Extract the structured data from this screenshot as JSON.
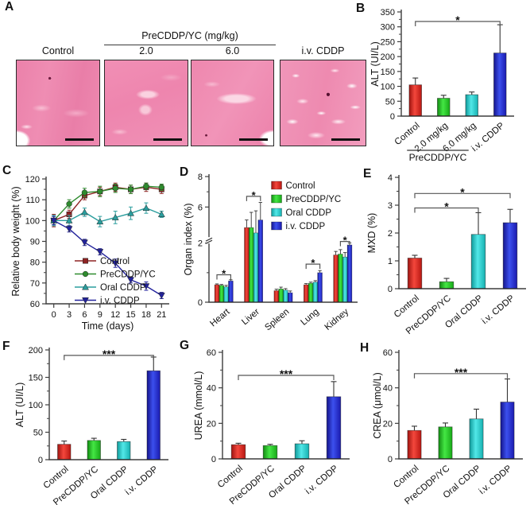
{
  "figure": {
    "panels": {
      "A": {
        "label": "A",
        "group_header": "PreCDDP/YC (mg/kg)",
        "columns": [
          "Control",
          "2.0",
          "6.0",
          "i.v. CDDP"
        ]
      },
      "B": {
        "label": "B"
      },
      "C": {
        "label": "C"
      },
      "D": {
        "label": "D"
      },
      "E": {
        "label": "E"
      },
      "F": {
        "label": "F"
      },
      "G": {
        "label": "G"
      },
      "H": {
        "label": "H"
      }
    }
  },
  "colors": {
    "axis": "#3d3d3d",
    "histology_pink": "#ee86ae",
    "significance_bracket": "#565656",
    "gradients": {
      "red": [
        "#9e1410",
        "#f4473c",
        "#b81712"
      ],
      "green": [
        "#128a12",
        "#44e744",
        "#17a817"
      ],
      "cyan": [
        "#0f9a9a",
        "#52e8e8",
        "#16b0b0"
      ],
      "blue": [
        "#14148c",
        "#3c50ee",
        "#1a1aae"
      ]
    },
    "lines": {
      "maroon": "#8e2323",
      "green": "#2e8b2e",
      "teal": "#2a9d9d",
      "navy": "#22229c"
    }
  },
  "chart_data": [
    {
      "panel": "B",
      "type": "bar",
      "ylabel": "ALT (UI/L)",
      "ylim": [
        0,
        350
      ],
      "yticks": [
        0,
        50,
        100,
        150,
        200,
        250,
        300,
        350
      ],
      "categories": [
        "Control",
        "2.0 mg/kg",
        "6.0 mg/kg",
        "i.v. CDDP"
      ],
      "values": [
        105,
        60,
        72,
        212
      ],
      "errors": [
        23,
        10,
        9,
        95
      ],
      "bar_colors": [
        "red",
        "green",
        "cyan",
        "blue"
      ],
      "significance": [
        {
          "from": 0,
          "to": 3,
          "y": 318,
          "label": "*"
        }
      ],
      "group_underline": {
        "label": "PreCDDP/YC",
        "from": 1,
        "to": 2
      }
    },
    {
      "panel": "C",
      "type": "line",
      "xlabel": "Time (days)",
      "ylabel": "Relative body weight (%)",
      "xlim": [
        -1.5,
        22.5
      ],
      "ylim": [
        60,
        120
      ],
      "yticks": [
        60,
        70,
        80,
        90,
        100,
        110,
        120
      ],
      "x": [
        0,
        3,
        6,
        9,
        12,
        15,
        18,
        21
      ],
      "legend_position": "bottom-left",
      "series": [
        {
          "name": "Control",
          "marker": "square",
          "color": "maroon",
          "values": [
            100,
            103,
            112,
            114,
            116,
            115,
            116,
            115
          ],
          "errors": [
            3,
            2,
            2,
            2,
            2,
            2,
            2,
            2
          ]
        },
        {
          "name": "PreCDDP/YC",
          "marker": "circle",
          "color": "green",
          "values": [
            100,
            108,
            113.5,
            114,
            115.5,
            115,
            116.5,
            116
          ],
          "errors": [
            2,
            2,
            2,
            2.5,
            2,
            2,
            1.5,
            1.5
          ]
        },
        {
          "name": "Oral CDDP",
          "marker": "triangle-up",
          "color": "teal",
          "values": [
            100,
            100,
            104,
            99.5,
            101.5,
            103.5,
            106,
            103
          ],
          "errors": [
            2.5,
            2.5,
            2,
            2.5,
            3,
            3,
            2.5,
            1.5
          ]
        },
        {
          "name": "i.v. CDDP",
          "marker": "triangle-down",
          "color": "navy",
          "values": [
            100,
            96,
            89.5,
            85,
            79.5,
            71.5,
            68.5,
            64
          ],
          "errors": [
            2,
            1.5,
            1.5,
            1.5,
            2,
            1.5,
            2,
            1.5
          ]
        }
      ]
    },
    {
      "panel": "D",
      "type": "grouped-bar",
      "ylabel": "Organ index (%)",
      "categories": [
        "Heart",
        "Liver",
        "Spleen",
        "Lung",
        "Kidney"
      ],
      "broken_axis": {
        "lower": [
          0,
          2
        ],
        "upper": [
          4,
          8
        ],
        "lower_frac": 0.47,
        "gap_frac": 0.045
      },
      "yticks_lower": [
        0,
        2
      ],
      "yticks_upper": [
        6,
        8
      ],
      "yticks_minor": [
        1,
        7
      ],
      "legend_position": "top-right",
      "series": [
        {
          "name": "Control",
          "color": "red",
          "values": [
            0.59,
            4.65,
            0.39,
            0.59,
            1.6
          ],
          "errors": [
            0.03,
            0.5,
            0.05,
            0.04,
            0.12
          ]
        },
        {
          "name": "PreCDDP/YC",
          "color": "green",
          "values": [
            0.57,
            4.65,
            0.45,
            0.64,
            1.63
          ],
          "errors": [
            0.03,
            1.0,
            0.06,
            0.04,
            0.15
          ]
        },
        {
          "name": "Oral CDDP",
          "color": "cyan",
          "values": [
            0.52,
            4.3,
            0.41,
            0.68,
            1.53
          ],
          "errors": [
            0.05,
            1.45,
            0.05,
            0.05,
            0.15
          ]
        },
        {
          "name": "i.v. CDDP",
          "color": "blue",
          "values": [
            0.72,
            5.15,
            0.32,
            1.0,
            1.94
          ],
          "errors": [
            0.04,
            1.15,
            0.06,
            0.07,
            0.14
          ]
        }
      ],
      "significance": [
        {
          "cat": 0,
          "from": 0,
          "to": 3,
          "y": 0.93,
          "label": "*"
        },
        {
          "cat": 1,
          "from": 0,
          "to": 3,
          "y": 6.7,
          "label": "*"
        },
        {
          "cat": 3,
          "from": 0,
          "to": 3,
          "y": 1.29,
          "label": "*"
        },
        {
          "cat": 4,
          "from": 1,
          "to": 3,
          "y": 2.6,
          "label": "*"
        }
      ]
    },
    {
      "panel": "E",
      "type": "bar",
      "ylabel": "MXD (%)",
      "ylim": [
        0,
        4
      ],
      "yticks": [
        0,
        1,
        2,
        3,
        4
      ],
      "categories": [
        "Control",
        "PreCDDP/YC",
        "Oral CDDP",
        "i.v. CDDP"
      ],
      "values": [
        1.1,
        0.25,
        1.95,
        2.37
      ],
      "errors": [
        0.1,
        0.12,
        0.78,
        0.48
      ],
      "bar_colors": [
        "red",
        "green",
        "cyan",
        "blue"
      ],
      "significance": [
        {
          "from": 0,
          "to": 2,
          "y": 2.9,
          "label": "*"
        },
        {
          "from": 0,
          "to": 3,
          "y": 3.42,
          "label": "*"
        }
      ]
    },
    {
      "panel": "F",
      "type": "bar",
      "ylabel": "ALT (UI/L)",
      "ylim": [
        0,
        200
      ],
      "yticks": [
        0,
        50,
        100,
        150,
        200
      ],
      "categories": [
        "Control",
        "PreCDDP/YC",
        "Oral CDDP",
        "i.v. CDDP"
      ],
      "values": [
        28,
        35,
        33,
        162
      ],
      "errors": [
        6,
        4,
        4,
        25
      ],
      "bar_colors": [
        "red",
        "green",
        "cyan",
        "blue"
      ],
      "significance": [
        {
          "from": 0,
          "to": 3,
          "y": 190,
          "label": "***"
        }
      ]
    },
    {
      "panel": "G",
      "type": "bar",
      "ylabel": "UREA (mmol/L)",
      "ylim": [
        0,
        60
      ],
      "yticks": [
        0,
        20,
        40,
        60
      ],
      "categories": [
        "Control",
        "PreCDDP/YC",
        "Oral CDDP",
        "i.v. CDDP"
      ],
      "values": [
        8,
        7.5,
        8.5,
        35
      ],
      "errors": [
        0.8,
        0.7,
        1.7,
        8.5
      ],
      "bar_colors": [
        "red",
        "green",
        "cyan",
        "blue"
      ],
      "significance": [
        {
          "from": 0,
          "to": 3,
          "y": 47,
          "label": "***"
        }
      ]
    },
    {
      "panel": "H",
      "type": "bar",
      "ylabel": "CREA (μmol/L)",
      "ylim": [
        0,
        60
      ],
      "yticks": [
        0,
        20,
        40,
        60
      ],
      "categories": [
        "Control",
        "PreCDDP/YC",
        "Oral CDDP",
        "i.v. CDDP"
      ],
      "values": [
        16,
        18,
        22.5,
        32
      ],
      "errors": [
        2.4,
        2.2,
        5.5,
        13
      ],
      "bar_colors": [
        "red",
        "green",
        "cyan",
        "blue"
      ],
      "significance": [
        {
          "from": 0,
          "to": 3,
          "y": 48,
          "label": "***"
        }
      ]
    }
  ]
}
